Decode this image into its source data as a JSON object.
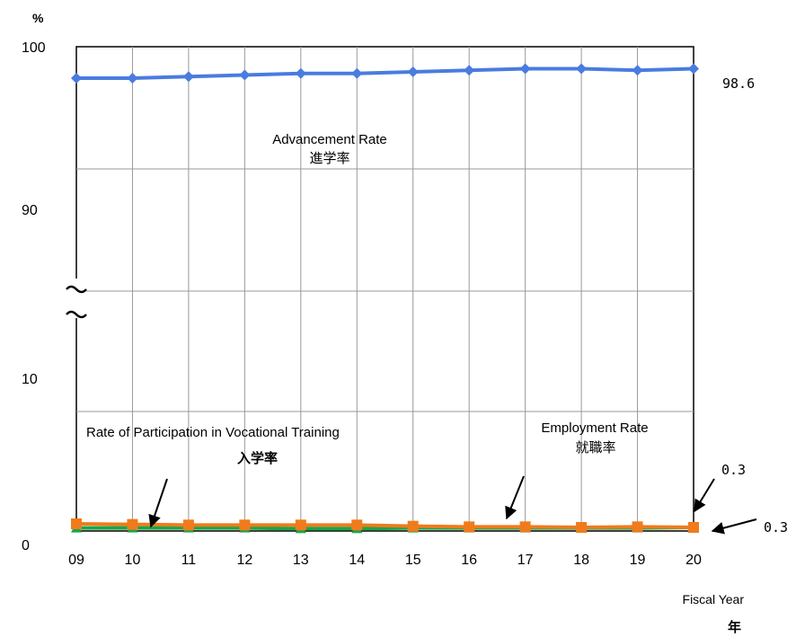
{
  "chart_data": {
    "type": "line",
    "unit_label": "%",
    "y_ticks": [
      "100",
      "90",
      "10",
      "0"
    ],
    "axis_break": true,
    "grid": true,
    "categories": [
      "09",
      "10",
      "11",
      "12",
      "13",
      "14",
      "15",
      "16",
      "17",
      "18",
      "19",
      "20"
    ],
    "xlabel_en": "Fiscal Year",
    "xlabel_ja": "年",
    "series": [
      {
        "key": "advancement",
        "label_en": "Advancement Rate",
        "label_ja": "進学率",
        "color": "#4a7be0",
        "marker": "diamond",
        "values": [
          98.0,
          98.0,
          98.1,
          98.2,
          98.3,
          98.3,
          98.4,
          98.5,
          98.6,
          98.6,
          98.5,
          98.6
        ],
        "end_label": "98.6"
      },
      {
        "key": "vocational",
        "label_en": "Rate of Participation in Vocational Training",
        "label_ja": "入学率",
        "color": "#f07b1c",
        "marker": "square",
        "values": [
          0.6,
          0.55,
          0.5,
          0.5,
          0.5,
          0.5,
          0.4,
          0.35,
          0.35,
          0.3,
          0.35,
          0.3
        ],
        "end_label": "0.3"
      },
      {
        "key": "employment",
        "label_en": "Employment Rate",
        "label_ja": "就職率",
        "color": "#1aa64a",
        "marker": "triangle",
        "values": [
          0.25,
          0.25,
          0.25,
          0.25,
          0.2,
          0.2,
          0.25,
          0.25,
          0.25,
          0.25,
          0.25,
          0.3
        ],
        "end_label": "0.3"
      }
    ]
  }
}
